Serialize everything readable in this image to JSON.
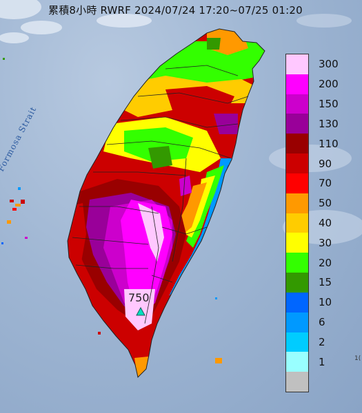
{
  "title": "累積8小時 RWRF 2024/07/24 17:20~07/25 01:20",
  "strait_label": "Formosa Strait",
  "station": {
    "value_label": "750",
    "marker": "triangle-marker"
  },
  "edge_label": "1(",
  "legend": {
    "items": [
      {
        "label": "300",
        "color": "#ffc8ff"
      },
      {
        "label": "200",
        "color": "#ff00ff"
      },
      {
        "label": "150",
        "color": "#cc00cc"
      },
      {
        "label": "130",
        "color": "#990099"
      },
      {
        "label": "110",
        "color": "#990000"
      },
      {
        "label": "90",
        "color": "#cc0000"
      },
      {
        "label": "70",
        "color": "#ff0000"
      },
      {
        "label": "50",
        "color": "#ff9900"
      },
      {
        "label": "40",
        "color": "#ffcc00"
      },
      {
        "label": "30",
        "color": "#ffff00"
      },
      {
        "label": "20",
        "color": "#33ff00"
      },
      {
        "label": "15",
        "color": "#339900"
      },
      {
        "label": "10",
        "color": "#0066ff"
      },
      {
        "label": "6",
        "color": "#0099ff"
      },
      {
        "label": "2",
        "color": "#00ccff"
      },
      {
        "label": "1",
        "color": "#99ffff"
      },
      {
        "label": "",
        "color": "#c0c0c0"
      }
    ]
  }
}
